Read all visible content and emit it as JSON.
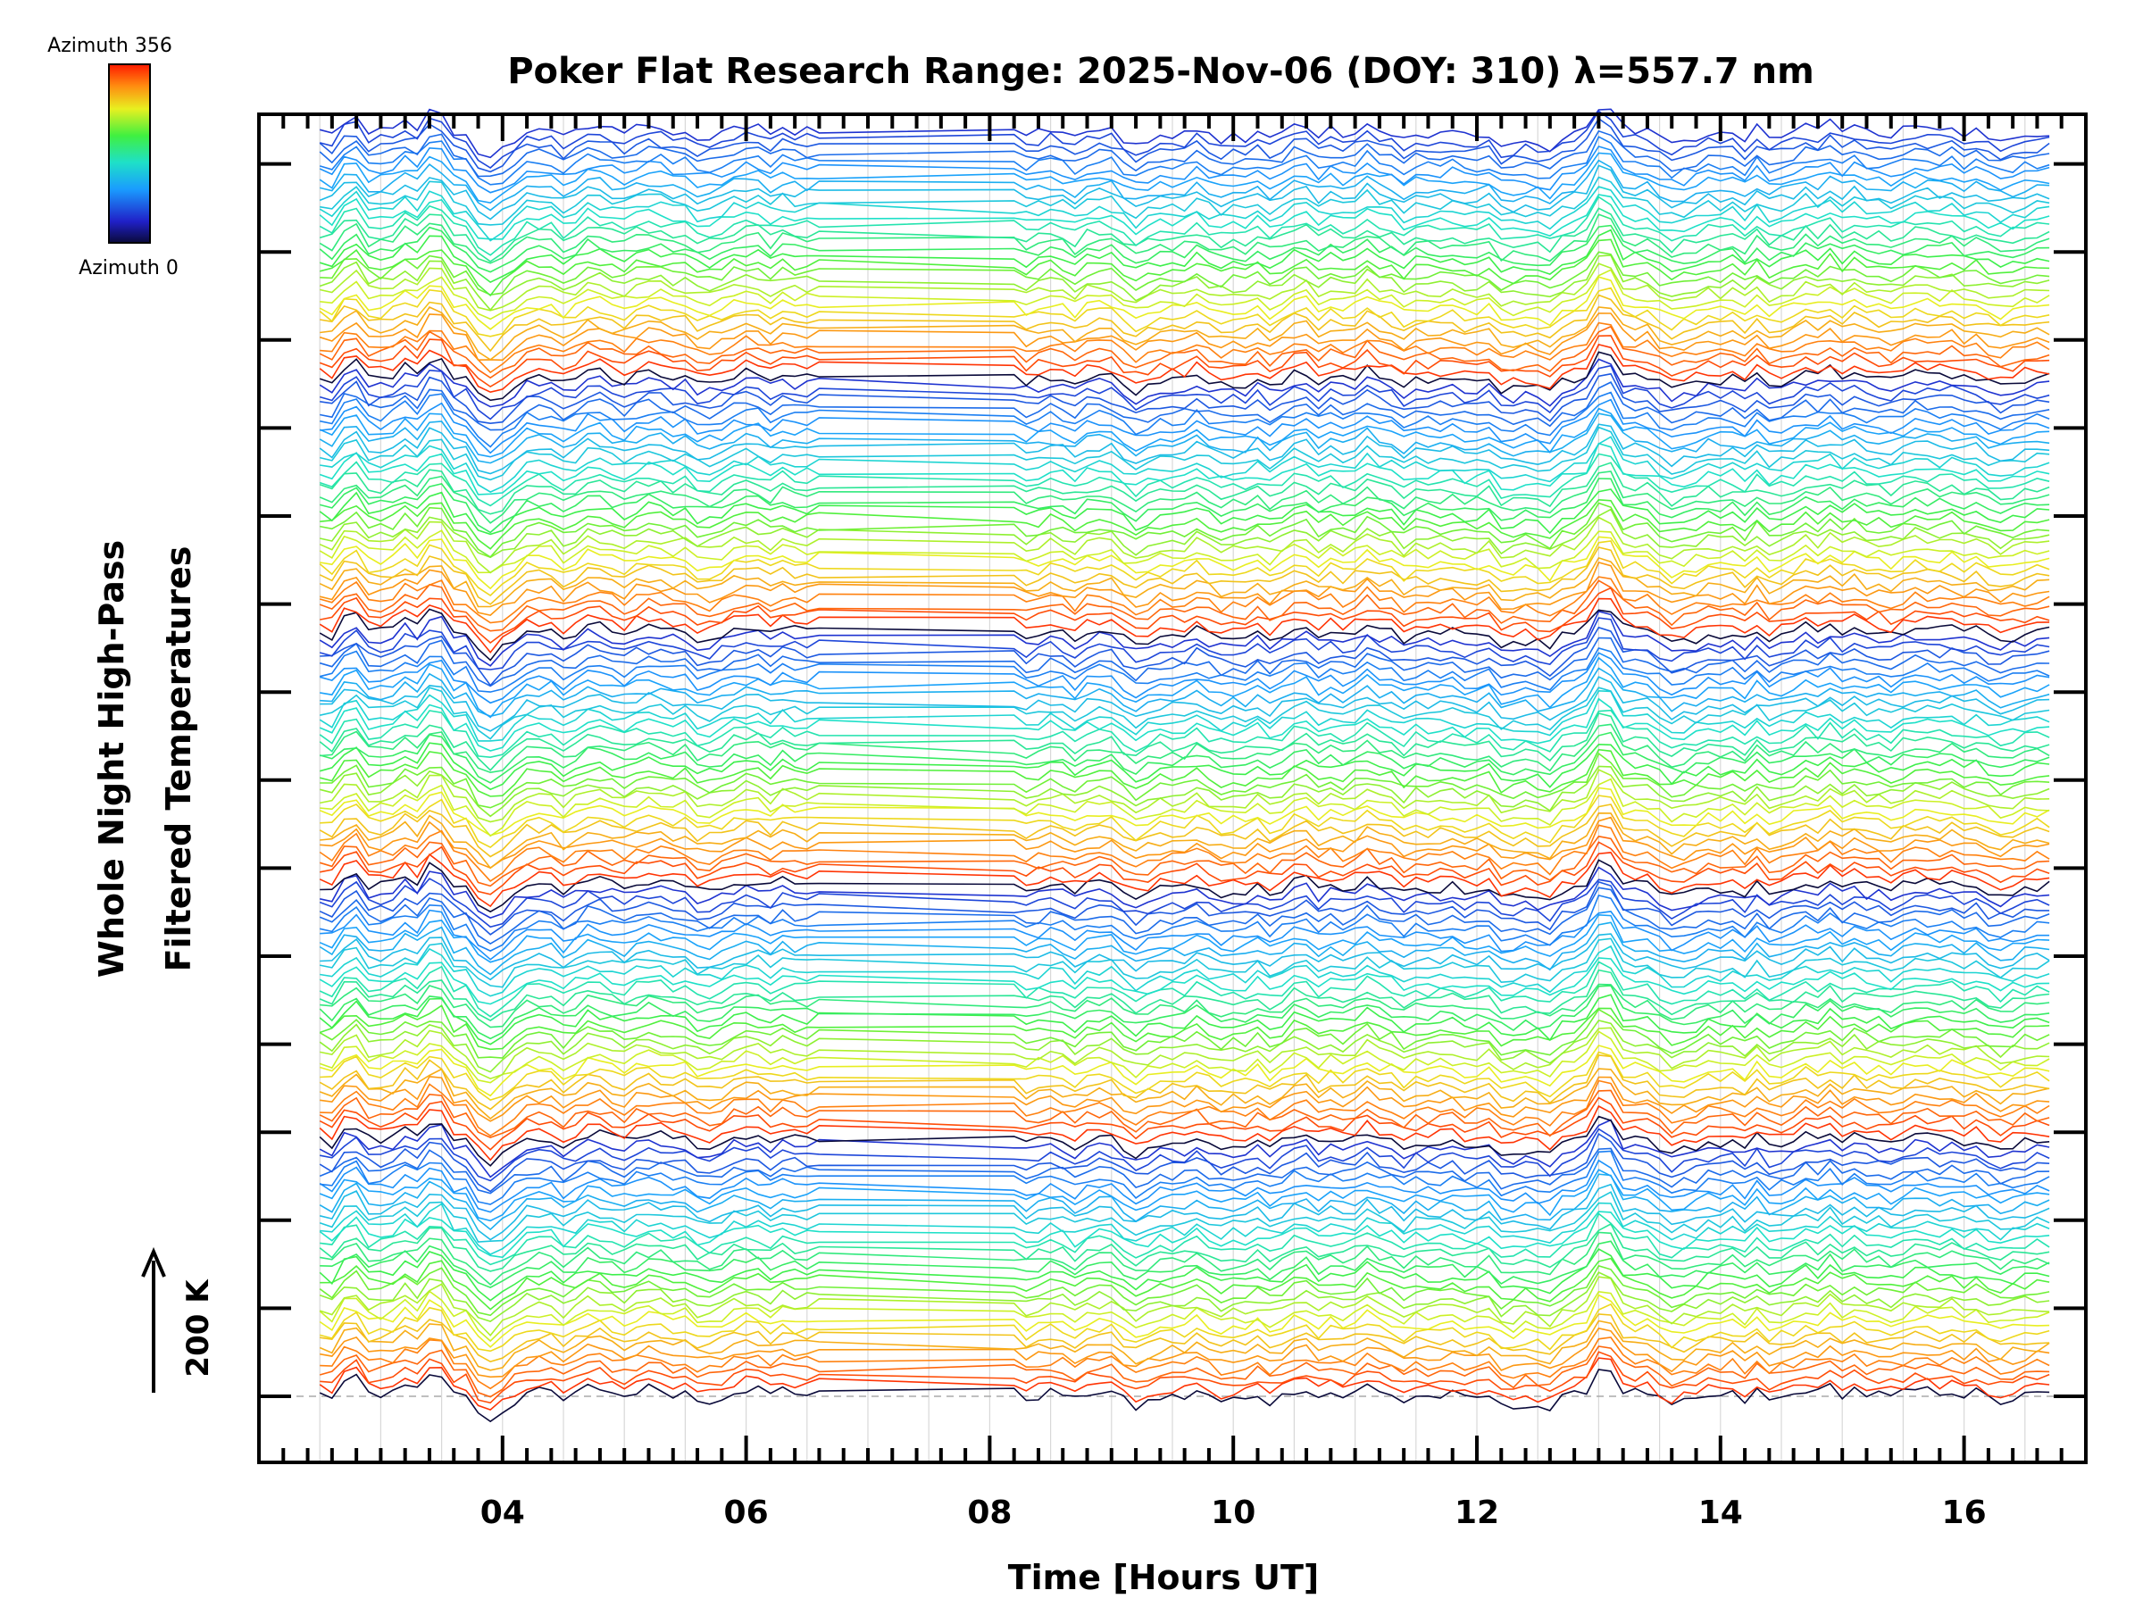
{
  "chart_data": {
    "type": "line",
    "title": "Poker Flat Research Range: 2025-Nov-06 (DOY: 310) λ=557.7 nm",
    "xlabel": "Time [Hours UT]",
    "ylabel_line1": "Whole Night High-Pass",
    "ylabel_line2": "Filtered Temperatures",
    "xlim": [
      2.0,
      17.0
    ],
    "x_ticks": [
      4,
      6,
      8,
      10,
      12,
      14,
      16
    ],
    "x_tick_labels": [
      "04",
      "06",
      "08",
      "10",
      "12",
      "14",
      "16"
    ],
    "x_start": 2.5,
    "x_end": 16.7,
    "data_gap": [
      6.6,
      8.2
    ],
    "series_count": 160,
    "series_per_cycle": 32,
    "scale_bar_label": "200 K",
    "legend": {
      "top_label": "Azimuth 356",
      "bottom_label": "Azimuth 0",
      "min": 0,
      "max": 356,
      "colormap": "rainbow"
    }
  }
}
